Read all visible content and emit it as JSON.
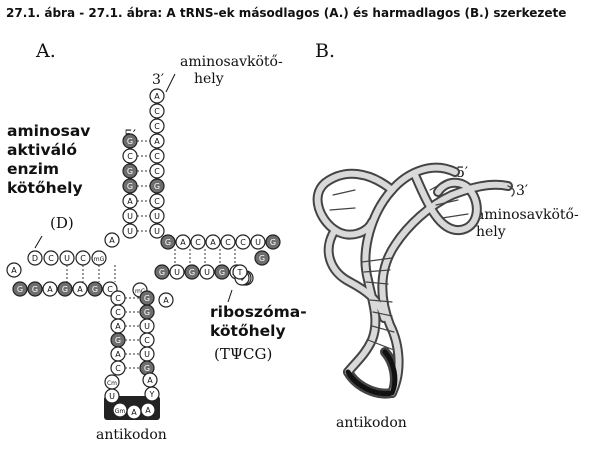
{
  "caption": "27.1. ábra - 27.1. ábra: A tRNS-ek másodlagos (A.) és harmadlagos (B.) szerkezete",
  "panel_a": {
    "label": "A.",
    "prime3": "3′",
    "prime5": "5′",
    "amino_site_line1": "aminosavkötő-",
    "amino_site_line2": "hely",
    "enzyme_site": [
      "aminosav",
      "aktiváló",
      "enzim",
      "kötőhely"
    ],
    "enzyme_site_code": "(D)",
    "ribosome_site": [
      "riboszóma-",
      "kötőhely"
    ],
    "ribosome_site_code": "(TΨCG)",
    "anticodon": "antikodon",
    "acceptor_stem_3": [
      "A",
      "C",
      "C",
      "A",
      "C",
      "C",
      "G",
      "C",
      "U",
      "U"
    ],
    "acceptor_stem_5": [
      "G",
      "C",
      "G",
      "G",
      "A",
      "U",
      "U"
    ],
    "d_arm_top": [
      "D",
      "C",
      "U",
      "C",
      "mG"
    ],
    "d_arm_bottom": [
      "G",
      "G",
      "A",
      "G",
      "A",
      "G",
      "C"
    ],
    "t_arm_top": [
      "G",
      "A",
      "C",
      "A",
      "C",
      "C",
      "U",
      "G"
    ],
    "t_arm_bottom": [
      "G",
      "U",
      "G",
      "U",
      "G",
      "mA"
    ],
    "t_loop": [
      "C",
      "U",
      "Ψ",
      "T"
    ],
    "anticodon_stem_left": [
      "C",
      "C",
      "A",
      "G",
      "A",
      "C"
    ],
    "anticodon_stem_right": [
      "G",
      "G",
      "U",
      "C",
      "U",
      "G"
    ],
    "anticodon_loop": [
      "Cm",
      "U",
      "Gm",
      "A",
      "A",
      "Y",
      "A"
    ]
  },
  "panel_b": {
    "label": "B.",
    "prime5": "5′",
    "prime3": "3′",
    "amino_site_line1": "aminosavkötő-",
    "amino_site_line2": "hely",
    "anticodon": "antikodon"
  }
}
